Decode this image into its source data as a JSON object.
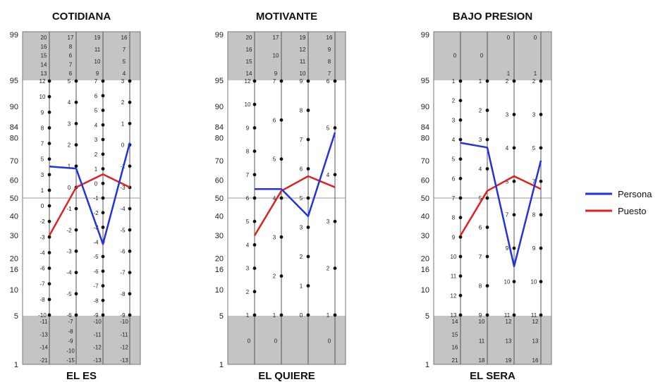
{
  "chart_data": {
    "type": "line",
    "legend_position": "right",
    "y_tick_labels": [
      "99",
      "95",
      "90",
      "84",
      "80",
      "70",
      "60",
      "50",
      "40",
      "30",
      "20",
      "16",
      "10",
      "5",
      "1"
    ],
    "series": [
      {
        "name": "Persona",
        "color": "#2233dd"
      },
      {
        "name": "Puesto",
        "color": "#dd2222"
      }
    ],
    "panels": [
      {
        "title": "COTIDIANA",
        "subtitle": "EL ES",
        "persona": [
          67,
          66,
          26,
          78
        ],
        "puesto": [
          30,
          56,
          63,
          56
        ],
        "column_scales": [
          {
            "top": [
              "20",
              "16",
              "15",
              "14",
              "13"
            ],
            "mid": [
              "12",
              "10",
              "9",
              "8",
              "7",
              "5",
              "3",
              "1",
              "0",
              "-2",
              "-3",
              "-4",
              "-6",
              "-7",
              "-8",
              "-10"
            ],
            "bottom": [
              "-11",
              "-13",
              "-14",
              "-21"
            ]
          },
          {
            "top": [
              "17",
              "8",
              "6",
              "7",
              "6"
            ],
            "mid": [
              "5",
              "4",
              "3",
              "2",
              "1",
              "0",
              "-1",
              "-2",
              "-3",
              "-4",
              "-5",
              "-6"
            ],
            "bottom": [
              "-7",
              "-8",
              "-9",
              "-10",
              "-15"
            ]
          },
          {
            "top": [
              "19",
              "11",
              "10",
              "9"
            ],
            "mid": [
              "7",
              "6",
              "5",
              "4",
              "3",
              "2",
              "1",
              "0",
              "-1",
              "-2",
              "-3",
              "-4",
              "-5",
              "-6",
              "-7",
              "-8",
              "-9"
            ],
            "bottom": [
              "-10",
              "-11",
              "-12",
              "-13"
            ]
          },
          {
            "top": [
              "16",
              "7",
              "5",
              "4"
            ],
            "mid": [
              "3",
              "2",
              "1",
              "0",
              "-1",
              "-3",
              "-4",
              "-5",
              "-6",
              "-7",
              "-8",
              "-9"
            ],
            "bottom": [
              "-10",
              "-11",
              "-12",
              "-13"
            ]
          }
        ]
      },
      {
        "title": "MOTIVANTE",
        "subtitle": "EL QUIERE",
        "persona": [
          55,
          55,
          40,
          82
        ],
        "puesto": [
          30,
          54,
          62,
          56
        ],
        "column_scales": [
          {
            "top": [
              "20",
              "16",
              "15",
              "14"
            ],
            "mid": [
              "12",
              "10",
              "9",
              "8",
              "7",
              "6",
              "5",
              "4",
              "3",
              "2",
              "1"
            ],
            "bottom": [
              "0"
            ]
          },
          {
            "top": [
              "17",
              "10",
              "9"
            ],
            "mid": [
              "7",
              "6",
              "5",
              "4",
              "3",
              "2",
              "1"
            ],
            "bottom": [
              "0"
            ]
          },
          {
            "top": [
              "19",
              "12",
              "11",
              "10"
            ],
            "mid": [
              "9",
              "8",
              "7",
              "6",
              "5",
              "3",
              "2",
              "1",
              "0"
            ],
            "bottom": []
          },
          {
            "top": [
              "16",
              "9",
              "8",
              "7"
            ],
            "mid": [
              "6",
              "5",
              "4",
              "3",
              "2",
              "1"
            ],
            "bottom": [
              "0"
            ]
          }
        ]
      },
      {
        "title": "BAJO PRESION",
        "subtitle": "EL SERA",
        "persona": [
          78,
          76,
          17,
          70
        ],
        "puesto": [
          30,
          54,
          62,
          55
        ],
        "column_scales": [
          {
            "top": [
              "0"
            ],
            "mid": [
              "1",
              "2",
              "3",
              "4",
              "5",
              "6",
              "7",
              "8",
              "9",
              "10",
              "11",
              "12",
              "13"
            ],
            "bottom": [
              "14",
              "15",
              "16",
              "21"
            ]
          },
          {
            "top": [
              "0"
            ],
            "mid": [
              "1",
              "2",
              "3",
              "4",
              "5",
              "6",
              "7",
              "8",
              "9"
            ],
            "bottom": [
              "10",
              "11",
              "18"
            ]
          },
          {
            "top": [
              "0",
              "1"
            ],
            "mid": [
              "2",
              "3",
              "4",
              "5",
              "7",
              "9",
              "10",
              "11"
            ],
            "bottom": [
              "12",
              "13",
              "19"
            ]
          },
          {
            "top": [
              "0",
              "1"
            ],
            "mid": [
              "2",
              "3",
              "5",
              "7",
              "8",
              "9",
              "10",
              "11"
            ],
            "bottom": [
              "12",
              "13",
              "16"
            ]
          }
        ]
      }
    ]
  }
}
